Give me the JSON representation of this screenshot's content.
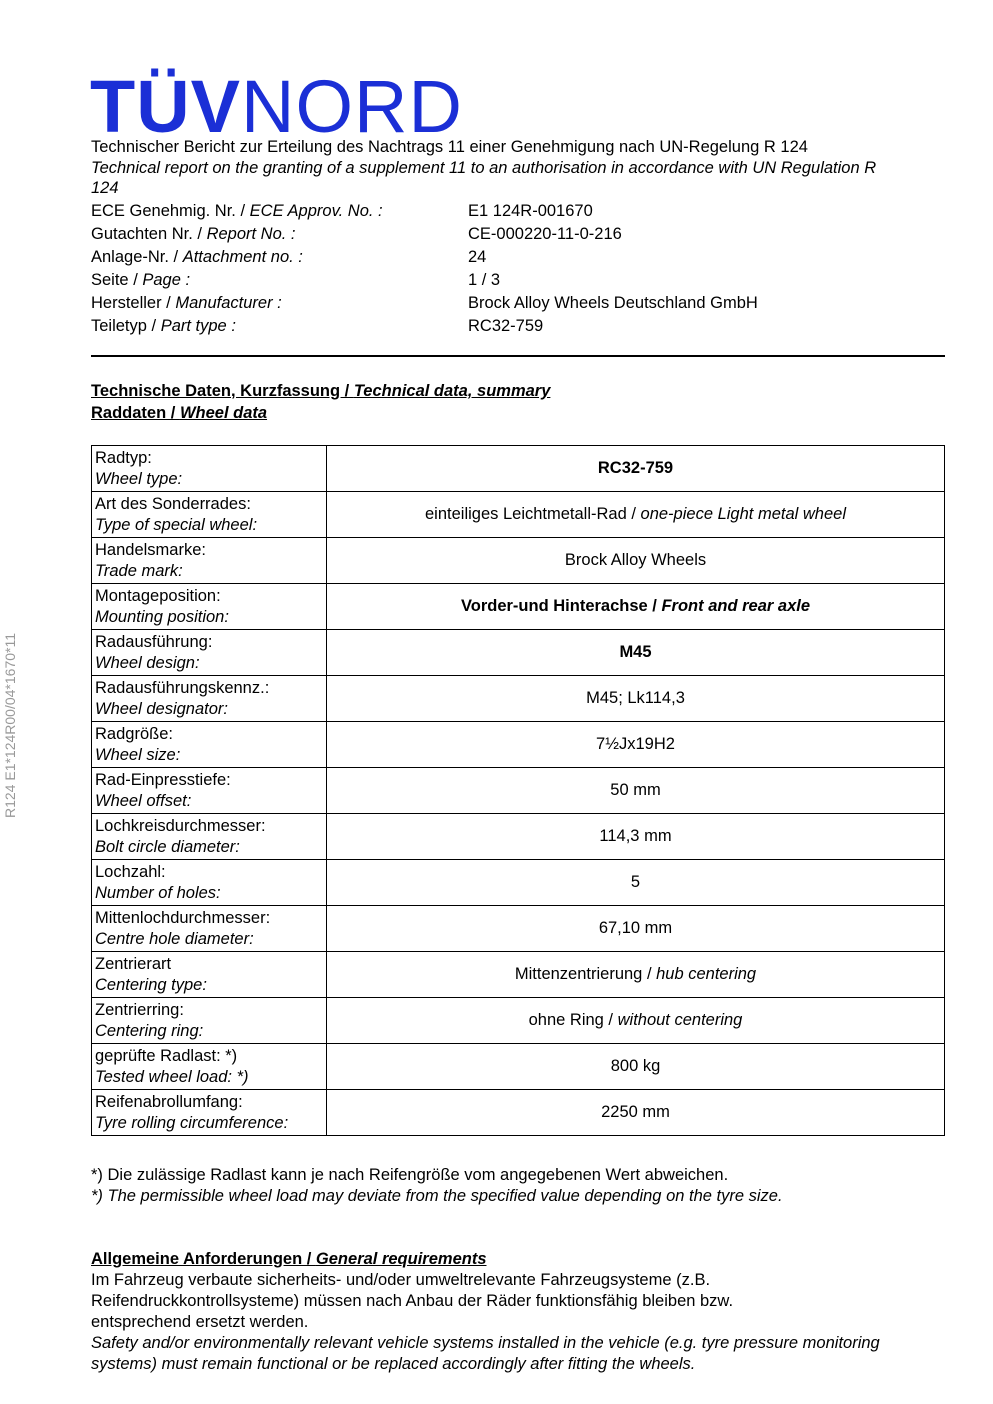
{
  "logo": {
    "bold": "TÜV",
    "light": "NORD"
  },
  "side_text": "R124  E1*124R00/04*1670*11",
  "header": {
    "title_de": "Technischer Bericht zur Erteilung des Nachtrags 11 einer Genehmigung nach UN-Regelung R 124",
    "title_en": "Technical report on the granting of a supplement 11 to an authorisation in accordance with UN Regulation R 124"
  },
  "meta": [
    {
      "de": "ECE Genehmig. Nr.  / ",
      "en": "ECE Approv. No. :",
      "value": "E1 124R-001670"
    },
    {
      "de": "Gutachten Nr.  / ",
      "en": "Report No. :",
      "value": "CE-000220-11-0-216"
    },
    {
      "de": "Anlage-Nr.  / ",
      "en": "Attachment no. :",
      "value": "24"
    },
    {
      "de": "Seite  / ",
      "en": "Page :",
      "value": "1 / 3"
    },
    {
      "de": "Hersteller  / ",
      "en": "Manufacturer :",
      "value": "Brock Alloy Wheels Deutschland GmbH"
    },
    {
      "de": "Teiletyp  / ",
      "en": "Part type :",
      "value": "RC32-759"
    }
  ],
  "section1": {
    "de": "Technische Daten, Kurzfassung / ",
    "en": "Technical data, summary"
  },
  "section2": {
    "de": "Raddaten / ",
    "en": "Wheel data"
  },
  "rows": [
    {
      "de": "Radtyp:",
      "en": "Wheel type:",
      "v_de": "RC32-759",
      "v_en": "",
      "bold": true
    },
    {
      "de": "Art des Sonderrades:",
      "en": "Type of special wheel:",
      "v_de": "einteiliges Leichtmetall-Rad / ",
      "v_en": "one-piece Light metal wheel",
      "bold": false
    },
    {
      "de": "Handelsmarke:",
      "en": "Trade mark:",
      "v_de": "Brock Alloy Wheels",
      "v_en": "",
      "bold": false
    },
    {
      "de": "Montageposition:",
      "en": "Mounting position:",
      "v_de": "Vorder-und Hinterachse / ",
      "v_en": "Front and rear axle",
      "bold": true
    },
    {
      "de": "Radausführung:",
      "en": "Wheel design:",
      "v_de": "M45",
      "v_en": "",
      "bold": true
    },
    {
      "de": "Radausführungskennz.:",
      "en": "Wheel designator:",
      "v_de": "M45; Lk114,3",
      "v_en": "",
      "bold": false
    },
    {
      "de": "Radgröße:",
      "en": "Wheel size:",
      "v_de": "7½Jx19H2",
      "v_en": "",
      "bold": false
    },
    {
      "de": "Rad-Einpresstiefe:",
      "en": "Wheel offset:",
      "v_de": "50 mm",
      "v_en": "",
      "bold": false
    },
    {
      "de": "Lochkreisdurchmesser:",
      "en": "Bolt circle diameter:",
      "v_de": "114,3 mm",
      "v_en": "",
      "bold": false
    },
    {
      "de": "Lochzahl:",
      "en": "Number of holes:",
      "v_de": "5",
      "v_en": "",
      "bold": false
    },
    {
      "de": "Mittenlochdurchmesser:",
      "en": "Centre hole diameter:",
      "v_de": "67,10 mm",
      "v_en": "",
      "bold": false
    },
    {
      "de": "Zentrierart",
      "en": "Centering type:",
      "v_de": "Mittenzentrierung / ",
      "v_en": "hub centering",
      "bold": false
    },
    {
      "de": "Zentrierring:",
      "en": "Centering ring:",
      "v_de": "ohne Ring / ",
      "v_en": "without centering",
      "bold": false
    },
    {
      "de": "geprüfte Radlast: *)",
      "en": "Tested wheel load: *)",
      "v_de": "800 kg",
      "v_en": "",
      "bold": false
    },
    {
      "de": "Reifenabrollumfang:",
      "en": "Tyre rolling circumference:",
      "v_de": "2250 mm",
      "v_en": "",
      "bold": false
    }
  ],
  "footnote": {
    "de": "*) Die zulässige Radlast kann je nach Reifengröße vom angegebenen Wert abweichen.",
    "en": "*) The permissible wheel load may deviate from the specified value depending on the tyre size."
  },
  "general": {
    "heading_de": "Allgemeine Anforderungen / ",
    "heading_en": "General requirements",
    "text_de": "Im Fahrzeug verbaute sicherheits- und/oder umweltrelevante Fahrzeugsysteme (z.B. Reifendruckkontrollsysteme) müssen nach Anbau der Räder funktionsfähig bleiben bzw. entsprechend ersetzt werden.",
    "text_en": "Safety and/or environmentally relevant vehicle systems installed in the vehicle (e.g. tyre pressure monitoring systems) must remain functional or be replaced accordingly after fitting the wheels."
  },
  "colors": {
    "logo": "#1b2fd6"
  }
}
